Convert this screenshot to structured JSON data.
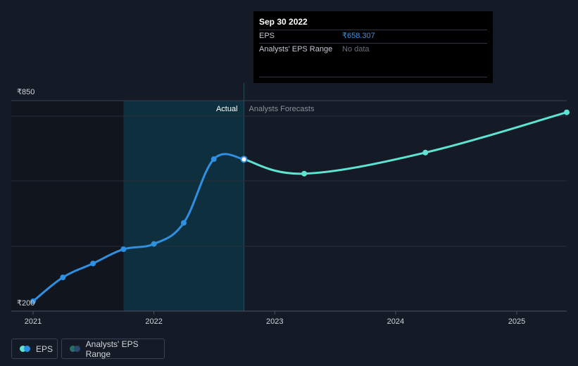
{
  "chart_data": {
    "type": "line",
    "y_tick_labels": [
      "₹850",
      "₹200"
    ],
    "x_tick_labels": [
      "2021",
      "2022",
      "2023",
      "2024",
      "2025"
    ],
    "ylim": [
      200,
      850
    ],
    "xlim": [
      "2021-01-01",
      "2025-06-01"
    ],
    "region_labels": {
      "actual": "Actual",
      "forecast": "Analysts Forecasts"
    },
    "series": [
      {
        "name": "EPS",
        "kind": "actual",
        "color": "#2f8fe0",
        "x": [
          "2021-01-01",
          "2021-04-01",
          "2021-07-01",
          "2021-10-01",
          "2022-01-01",
          "2022-04-01",
          "2022-07-01",
          "2022-09-30"
        ],
        "values": [
          200,
          277,
          322,
          368,
          385,
          453,
          659,
          658.307
        ]
      },
      {
        "name": "EPS",
        "kind": "forecast",
        "color": "#5ee3d2",
        "x": [
          "2022-09-30",
          "2023-03-31",
          "2024-03-31",
          "2025-06-01"
        ],
        "values": [
          658.307,
          612,
          680,
          810
        ]
      }
    ],
    "highlight": {
      "start": "2021-10-01",
      "end": "2022-09-30"
    }
  },
  "tooltip": {
    "date": "Sep 30 2022",
    "rows": [
      {
        "label": "EPS",
        "value": "₹658.307"
      },
      {
        "label": "Analysts' EPS Range",
        "value": "No data"
      }
    ]
  },
  "legend": {
    "eps_label": "EPS",
    "range_label": "Analysts' EPS Range"
  },
  "colors": {
    "background": "#151b26",
    "actual_line": "#2f8fe0",
    "forecast_line": "#5ee3d2",
    "highlight_band": "#0d2f3e",
    "past_shade": "#11161e"
  }
}
